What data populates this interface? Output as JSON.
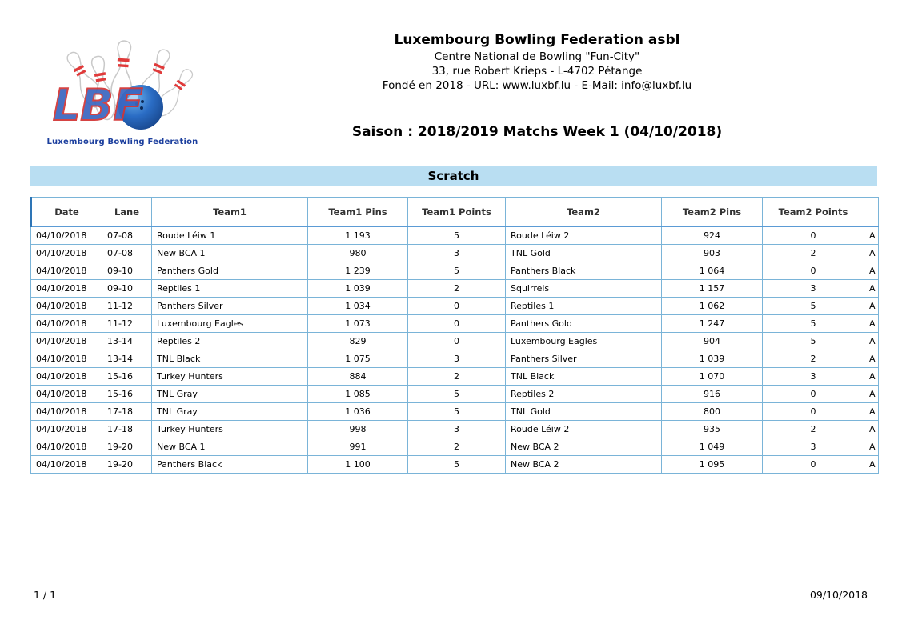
{
  "header": {
    "org_name": "Luxembourg Bowling Federation asbl",
    "line2": "Centre National de Bowling \"Fun-City\"",
    "line3": "33, rue Robert Krieps - L-4702 Pétange",
    "line4": "Fondé en 2018 - URL: www.luxbf.lu - E-Mail: info@luxbf.lu",
    "title": "Saison : 2018/2019 Matchs Week 1 (04/10/2018)",
    "logo_caption": "Luxembourg Bowling Federation",
    "logo_text": "LBF"
  },
  "section": {
    "title": "Scratch"
  },
  "colors": {
    "section_bar_bg": "#b9def2",
    "table_border": "#7ab4d8",
    "table_outer_border": "#5b9bd5",
    "logo_caption_blue": "#1c3f9e",
    "logo_red": "#d23434",
    "logo_blue": "#3a66c0",
    "ball_blue": "#1d4f9c"
  },
  "table": {
    "columns": [
      "Date",
      "Lane",
      "Team1",
      "Team1 Pins",
      "Team1 Points",
      "Team2",
      "Team2 Pins",
      "Team2 Points",
      ""
    ],
    "rows": [
      [
        "04/10/2018",
        "07-08",
        "Roude Léiw 1",
        "1 193",
        "5",
        "Roude Léiw 2",
        "924",
        "0",
        "A"
      ],
      [
        "04/10/2018",
        "07-08",
        "New BCA 1",
        "980",
        "3",
        "TNL Gold",
        "903",
        "2",
        "A"
      ],
      [
        "04/10/2018",
        "09-10",
        "Panthers Gold",
        "1 239",
        "5",
        "Panthers Black",
        "1 064",
        "0",
        "A"
      ],
      [
        "04/10/2018",
        "09-10",
        "Reptiles 1",
        "1 039",
        "2",
        "Squirrels",
        "1 157",
        "3",
        "A"
      ],
      [
        "04/10/2018",
        "11-12",
        "Panthers Silver",
        "1 034",
        "0",
        "Reptiles 1",
        "1 062",
        "5",
        "A"
      ],
      [
        "04/10/2018",
        "11-12",
        "Luxembourg Eagles",
        "1 073",
        "0",
        "Panthers Gold",
        "1 247",
        "5",
        "A"
      ],
      [
        "04/10/2018",
        "13-14",
        "Reptiles 2",
        "829",
        "0",
        "Luxembourg Eagles",
        "904",
        "5",
        "A"
      ],
      [
        "04/10/2018",
        "13-14",
        "TNL Black",
        "1 075",
        "3",
        "Panthers Silver",
        "1 039",
        "2",
        "A"
      ],
      [
        "04/10/2018",
        "15-16",
        "Turkey Hunters",
        "884",
        "2",
        "TNL Black",
        "1 070",
        "3",
        "A"
      ],
      [
        "04/10/2018",
        "15-16",
        "TNL Gray",
        "1 085",
        "5",
        "Reptiles 2",
        "916",
        "0",
        "A"
      ],
      [
        "04/10/2018",
        "17-18",
        "TNL Gray",
        "1 036",
        "5",
        "TNL Gold",
        "800",
        "0",
        "A"
      ],
      [
        "04/10/2018",
        "17-18",
        "Turkey Hunters",
        "998",
        "3",
        "Roude Léiw 2",
        "935",
        "2",
        "A"
      ],
      [
        "04/10/2018",
        "19-20",
        "New BCA 1",
        "991",
        "2",
        "New BCA 2",
        "1 049",
        "3",
        "A"
      ],
      [
        "04/10/2018",
        "19-20",
        "Panthers Black",
        "1 100",
        "5",
        "New BCA 2",
        "1 095",
        "0",
        "A"
      ]
    ]
  },
  "footer": {
    "page": "1 / 1",
    "date": "09/10/2018"
  }
}
